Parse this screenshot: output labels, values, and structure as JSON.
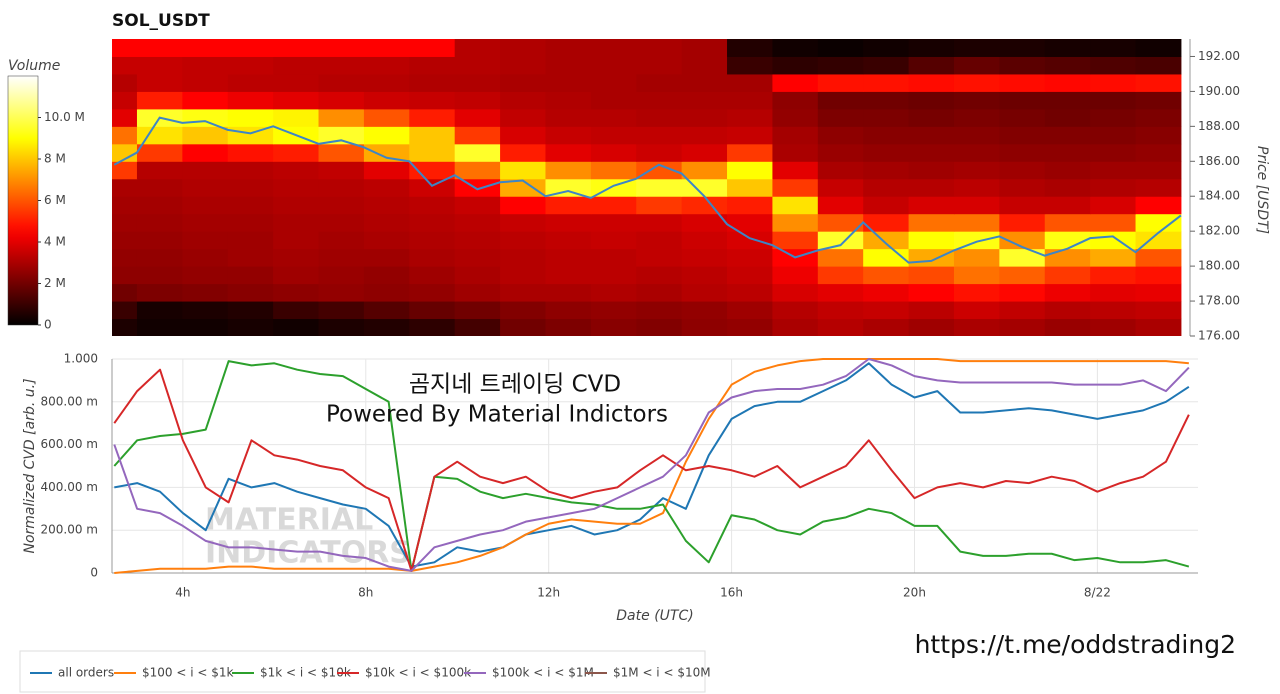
{
  "chart_data": [
    {
      "type": "heatmap",
      "title": "SOL_USDT",
      "colorbar_title": "Volume",
      "y_label": "Price [USDT]",
      "x": [
        2.5,
        3.5,
        4.5,
        5.5,
        6.5,
        7.5,
        8.5,
        9.5,
        10.5,
        11.5,
        12.5,
        13.5,
        14.5,
        15.5,
        16.5,
        17.5,
        18.5,
        19.5,
        20.5,
        21.5,
        22.5,
        23.5,
        24.5,
        25.5
      ],
      "y": [
        176.5,
        177.5,
        178.5,
        179.5,
        180.5,
        181.5,
        182.5,
        183.5,
        184.5,
        185.5,
        186.5,
        187.5,
        188.5,
        189.5,
        190.5,
        191.5,
        192.5
      ],
      "z": [
        [
          0.5,
          0.3,
          0.3,
          0.4,
          0.3,
          0.5,
          0.6,
          0.8,
          1.2,
          2.0,
          2.2,
          2.4,
          2.3,
          2.5,
          2.6,
          3.0,
          3.2,
          3.0,
          2.8,
          3.0,
          2.9,
          2.7,
          2.8,
          3.0
        ],
        [
          1.0,
          0.4,
          0.5,
          0.6,
          1.0,
          1.2,
          1.5,
          1.8,
          2.0,
          2.3,
          2.5,
          2.6,
          2.5,
          2.6,
          2.8,
          3.2,
          3.4,
          3.5,
          3.3,
          3.6,
          3.4,
          3.2,
          3.3,
          3.4
        ],
        [
          2.0,
          2.2,
          2.3,
          2.4,
          2.5,
          2.6,
          2.5,
          2.6,
          2.8,
          3.0,
          3.0,
          3.1,
          3.0,
          3.2,
          3.3,
          3.8,
          4.0,
          4.2,
          4.5,
          4.8,
          4.6,
          4.2,
          4.0,
          4.1
        ],
        [
          2.5,
          2.5,
          2.6,
          2.6,
          2.8,
          2.7,
          2.6,
          2.8,
          3.0,
          3.2,
          3.3,
          3.3,
          3.2,
          3.3,
          3.5,
          4.2,
          5.5,
          6.0,
          5.8,
          6.5,
          6.2,
          5.5,
          5.0,
          4.8
        ],
        [
          2.6,
          2.6,
          2.7,
          2.8,
          2.9,
          2.8,
          2.8,
          3.0,
          3.1,
          3.2,
          3.3,
          3.3,
          3.4,
          3.5,
          3.6,
          4.5,
          6.5,
          9.0,
          7.5,
          7.0,
          9.5,
          7.0,
          7.5,
          6.0
        ],
        [
          2.7,
          2.7,
          2.8,
          2.8,
          3.0,
          2.9,
          3.0,
          3.1,
          3.2,
          3.3,
          3.4,
          3.5,
          3.4,
          3.6,
          3.8,
          5.5,
          9.5,
          7.5,
          9.0,
          9.2,
          7.0,
          9.2,
          9.0,
          8.5
        ],
        [
          2.8,
          2.8,
          2.9,
          2.9,
          3.0,
          3.0,
          3.1,
          3.2,
          3.3,
          3.5,
          3.6,
          3.6,
          3.6,
          3.8,
          4.0,
          7.0,
          6.0,
          5.0,
          6.5,
          6.5,
          5.0,
          6.0,
          6.0,
          9.0
        ],
        [
          2.9,
          2.9,
          3.0,
          3.0,
          3.1,
          3.1,
          3.2,
          3.3,
          3.5,
          4.5,
          5.0,
          5.0,
          5.5,
          5.2,
          5.0,
          8.5,
          4.0,
          3.5,
          3.8,
          3.8,
          3.5,
          3.5,
          3.8,
          4.5
        ],
        [
          3.0,
          3.0,
          3.1,
          3.1,
          3.2,
          3.2,
          3.3,
          3.6,
          4.5,
          7.5,
          9.5,
          9.2,
          9.5,
          9.5,
          8.0,
          5.5,
          3.5,
          3.2,
          3.2,
          3.3,
          3.1,
          3.0,
          3.1,
          3.2
        ],
        [
          5.5,
          3.2,
          3.2,
          3.2,
          3.3,
          3.4,
          4.0,
          5.0,
          6.5,
          8.5,
          7.0,
          6.5,
          6.0,
          7.0,
          9.0,
          4.0,
          3.0,
          2.9,
          2.8,
          2.9,
          2.8,
          2.7,
          2.8,
          2.8
        ],
        [
          8.0,
          5.5,
          4.5,
          4.8,
          5.0,
          6.0,
          7.5,
          8.0,
          9.5,
          5.0,
          4.0,
          3.8,
          3.6,
          3.8,
          5.5,
          3.0,
          2.7,
          2.6,
          2.6,
          2.6,
          2.5,
          2.5,
          2.5,
          2.6
        ],
        [
          6.5,
          8.5,
          8.0,
          8.5,
          9.0,
          9.5,
          9.0,
          8.0,
          5.5,
          3.8,
          3.5,
          3.4,
          3.4,
          3.4,
          3.5,
          2.9,
          2.5,
          2.4,
          2.4,
          2.4,
          2.3,
          2.3,
          2.3,
          2.4
        ],
        [
          4.0,
          9.5,
          9.2,
          9.0,
          8.8,
          7.0,
          6.0,
          5.0,
          4.0,
          3.4,
          3.2,
          3.2,
          3.1,
          3.1,
          3.2,
          2.6,
          2.2,
          2.2,
          2.1,
          2.2,
          2.1,
          2.0,
          2.1,
          2.2
        ],
        [
          3.5,
          5.0,
          4.5,
          4.2,
          4.0,
          3.8,
          3.6,
          3.5,
          3.4,
          3.2,
          3.1,
          3.0,
          3.0,
          3.0,
          3.0,
          2.5,
          2.0,
          2.0,
          1.9,
          2.0,
          1.9,
          1.9,
          1.9,
          2.0
        ],
        [
          3.2,
          3.5,
          3.4,
          3.3,
          3.3,
          3.2,
          3.2,
          3.1,
          3.1,
          3.0,
          3.0,
          3.0,
          2.9,
          2.9,
          2.9,
          4.5,
          4.8,
          4.8,
          4.7,
          4.8,
          4.7,
          4.6,
          4.7,
          4.8
        ],
        [
          3.5,
          3.5,
          3.4,
          3.4,
          3.3,
          3.3,
          3.3,
          3.2,
          3.2,
          3.1,
          3.0,
          3.0,
          3.0,
          2.9,
          1.0,
          0.8,
          0.9,
          1.0,
          1.5,
          1.8,
          1.6,
          1.5,
          1.4,
          1.3
        ],
        [
          4.5,
          4.5,
          4.5,
          4.5,
          4.5,
          4.5,
          4.5,
          4.5,
          3.2,
          3.1,
          3.0,
          3.0,
          3.0,
          2.9,
          0.6,
          0.3,
          0.2,
          0.3,
          0.4,
          0.5,
          0.5,
          0.4,
          0.4,
          0.3
        ]
      ],
      "zlim": [
        0,
        12
      ],
      "zticks": [
        0,
        {
          "value": 2,
          "label": "2 M"
        },
        {
          "value": 4,
          "label": "4 M"
        },
        {
          "value": 6,
          "label": "6 M"
        },
        {
          "value": 8,
          "label": "8 M"
        },
        {
          "value": 10,
          "label": "10.0 M"
        }
      ],
      "xlim": [
        2.45,
        26.2
      ],
      "ylim": [
        176,
        193
      ],
      "yticks": [
        {
          "value": 176,
          "label": "176.00"
        },
        {
          "value": 178,
          "label": "178.00"
        },
        {
          "value": 180,
          "label": "180.00"
        },
        {
          "value": 182,
          "label": "182.00"
        },
        {
          "value": 184,
          "label": "184.00"
        },
        {
          "value": 186,
          "label": "186.00"
        },
        {
          "value": 188,
          "label": "188.00"
        },
        {
          "value": 190,
          "label": "190.00"
        },
        {
          "value": 192,
          "label": "192.00"
        }
      ],
      "price": {
        "color": "#3d85c6",
        "x": [
          2.5,
          3,
          3.5,
          4,
          4.5,
          5,
          5.5,
          6,
          6.5,
          7,
          7.5,
          8,
          8.5,
          9,
          9.5,
          10,
          10.5,
          11,
          11.5,
          12,
          12.5,
          13,
          13.5,
          14,
          14.5,
          15,
          15.5,
          16,
          16.5,
          17,
          17.5,
          18,
          18.5,
          19,
          19.5,
          20,
          20.5,
          21,
          21.5,
          22,
          22.5,
          23,
          23.5,
          24,
          24.5,
          25,
          25.5,
          26
        ],
        "values": [
          185.8,
          186.5,
          188.5,
          188.2,
          188.3,
          187.8,
          187.6,
          188.0,
          187.5,
          187.0,
          187.2,
          186.8,
          186.2,
          186.0,
          184.6,
          185.2,
          184.4,
          184.8,
          184.9,
          184.0,
          184.3,
          183.9,
          184.6,
          185.0,
          185.8,
          185.3,
          184.0,
          182.4,
          181.6,
          181.2,
          180.5,
          180.9,
          181.2,
          182.5,
          181.3,
          180.2,
          180.3,
          180.9,
          181.4,
          181.7,
          181.1,
          180.6,
          181.0,
          181.6,
          181.7,
          180.8,
          181.9,
          182.9
        ]
      }
    },
    {
      "type": "line",
      "x_label": "Date (UTC)",
      "y_label": "Normalized CVD [arb. u.]",
      "grid": true,
      "annotations": [
        "곰지네 트레이딩 CVD",
        "Powered By Material Indictors",
        "MATERIAL",
        "INDICATORS",
        "https://t.me/oddstrading2"
      ],
      "xlim": [
        2.45,
        26.2
      ],
      "xticks": [
        {
          "value": 4,
          "label": "4h"
        },
        {
          "value": 8,
          "label": "8h"
        },
        {
          "value": 12,
          "label": "12h"
        },
        {
          "value": 16,
          "label": "16h"
        },
        {
          "value": 20,
          "label": "20h"
        },
        {
          "value": 24,
          "label": "8/22"
        }
      ],
      "ylim": [
        0,
        1
      ],
      "yticks": [
        0,
        {
          "value": 0.2,
          "label": "200.00 m"
        },
        {
          "value": 0.4,
          "label": "400.00 m"
        },
        {
          "value": 0.6,
          "label": "600.00 m"
        },
        {
          "value": 0.8,
          "label": "800.00 m"
        },
        {
          "value": 1,
          "label": "1.000"
        }
      ],
      "x": [
        2.5,
        3,
        3.5,
        4,
        4.5,
        5,
        5.5,
        6,
        6.5,
        7,
        7.5,
        8,
        8.5,
        9,
        9.5,
        10,
        10.5,
        11,
        11.5,
        12,
        12.5,
        13,
        13.5,
        14,
        14.5,
        15,
        15.5,
        16,
        16.5,
        17,
        17.5,
        18,
        18.5,
        19,
        19.5,
        20,
        20.5,
        21,
        21.5,
        22,
        22.5,
        23,
        23.5,
        24,
        24.5,
        25,
        25.5,
        26
      ],
      "series": [
        {
          "name": "all orders",
          "color": "#1f77b4",
          "values": [
            0.4,
            0.42,
            0.38,
            0.28,
            0.2,
            0.44,
            0.4,
            0.42,
            0.38,
            0.35,
            0.32,
            0.3,
            0.22,
            0.03,
            0.05,
            0.12,
            0.1,
            0.12,
            0.18,
            0.2,
            0.22,
            0.18,
            0.2,
            0.25,
            0.35,
            0.3,
            0.55,
            0.72,
            0.78,
            0.8,
            0.8,
            0.85,
            0.9,
            0.98,
            0.88,
            0.82,
            0.85,
            0.75,
            0.75,
            0.76,
            0.77,
            0.76,
            0.74,
            0.72,
            0.74,
            0.76,
            0.8,
            0.87
          ]
        },
        {
          "name": "$100 < i < $1k",
          "color": "#ff7f0e",
          "values": [
            0.0,
            0.01,
            0.02,
            0.02,
            0.02,
            0.03,
            0.03,
            0.02,
            0.02,
            0.02,
            0.02,
            0.02,
            0.02,
            0.01,
            0.03,
            0.05,
            0.08,
            0.12,
            0.18,
            0.23,
            0.25,
            0.24,
            0.23,
            0.23,
            0.28,
            0.52,
            0.72,
            0.88,
            0.94,
            0.97,
            0.99,
            1.0,
            1.0,
            1.0,
            1.0,
            1.0,
            1.0,
            0.99,
            0.99,
            0.99,
            0.99,
            0.99,
            0.99,
            0.99,
            0.99,
            0.99,
            0.99,
            0.98
          ]
        },
        {
          "name": "$1k < i < $10k",
          "color": "#2ca02c",
          "values": [
            0.5,
            0.62,
            0.64,
            0.65,
            0.67,
            0.99,
            0.97,
            0.98,
            0.95,
            0.93,
            0.92,
            0.86,
            0.8,
            0.01,
            0.45,
            0.44,
            0.38,
            0.35,
            0.37,
            0.35,
            0.33,
            0.32,
            0.3,
            0.3,
            0.32,
            0.15,
            0.05,
            0.27,
            0.25,
            0.2,
            0.18,
            0.24,
            0.26,
            0.3,
            0.28,
            0.22,
            0.22,
            0.1,
            0.08,
            0.08,
            0.09,
            0.09,
            0.06,
            0.07,
            0.05,
            0.05,
            0.06,
            0.03
          ]
        },
        {
          "name": "$10k < i < $100k",
          "color": "#d62728",
          "values": [
            0.7,
            0.85,
            0.95,
            0.62,
            0.4,
            0.33,
            0.62,
            0.55,
            0.53,
            0.5,
            0.48,
            0.4,
            0.35,
            0.01,
            0.45,
            0.52,
            0.45,
            0.42,
            0.45,
            0.38,
            0.35,
            0.38,
            0.4,
            0.48,
            0.55,
            0.48,
            0.5,
            0.48,
            0.45,
            0.5,
            0.4,
            0.45,
            0.5,
            0.62,
            0.48,
            0.35,
            0.4,
            0.42,
            0.4,
            0.43,
            0.42,
            0.45,
            0.43,
            0.38,
            0.42,
            0.45,
            0.52,
            0.74
          ]
        },
        {
          "name": "$100k < i < $1M",
          "color": "#9467bd",
          "values": [
            0.6,
            0.3,
            0.28,
            0.22,
            0.15,
            0.12,
            0.12,
            0.11,
            0.1,
            0.1,
            0.08,
            0.07,
            0.03,
            0.01,
            0.12,
            0.15,
            0.18,
            0.2,
            0.24,
            0.26,
            0.28,
            0.3,
            0.35,
            0.4,
            0.45,
            0.55,
            0.75,
            0.82,
            0.85,
            0.86,
            0.86,
            0.88,
            0.92,
            1.0,
            0.97,
            0.92,
            0.9,
            0.89,
            0.89,
            0.89,
            0.89,
            0.89,
            0.88,
            0.88,
            0.88,
            0.9,
            0.85,
            0.96
          ]
        },
        {
          "name": "$1M < i < $10M",
          "color": "#8c564b",
          "values": [
            null,
            null,
            null,
            null,
            null,
            null,
            null,
            null,
            null,
            null,
            null,
            null,
            null,
            null,
            null,
            null,
            null,
            null,
            null,
            null,
            null,
            null,
            null,
            null,
            null,
            null,
            null,
            null,
            null,
            null,
            null,
            null,
            null,
            null,
            null,
            null,
            null,
            null,
            null,
            null,
            null,
            null,
            null,
            null,
            null,
            null,
            null,
            null
          ]
        }
      ]
    }
  ]
}
